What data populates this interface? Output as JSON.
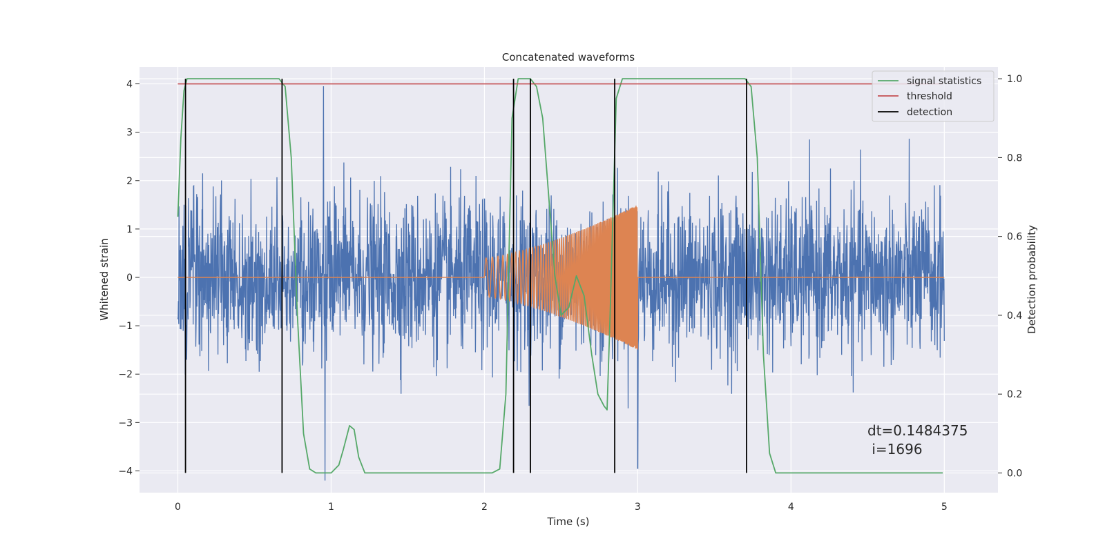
{
  "chart_data": {
    "type": "line",
    "title": "Concatenated waveforms",
    "xlabel": "Time (s)",
    "ylabel": "Whitened strain",
    "y2label": "Detection probability",
    "xlim": [
      -0.25,
      5.35
    ],
    "ylim": [
      -4.45,
      4.35
    ],
    "y2lim": [
      -0.05,
      1.03
    ],
    "x_ticks": [
      0,
      1,
      2,
      3,
      4,
      5
    ],
    "y_ticks": [
      -4,
      -3,
      -2,
      -1,
      0,
      1,
      2,
      3,
      4
    ],
    "y2_ticks": [
      0.0,
      0.2,
      0.4,
      0.6,
      0.8,
      1.0
    ],
    "y2_tick_labels": [
      "0.0",
      "0.2",
      "0.4",
      "0.6",
      "0.8",
      "1.0"
    ],
    "y_tick_labels": [
      "−4",
      "−3",
      "−2",
      "−1",
      "0",
      "1",
      "2",
      "3",
      "4"
    ],
    "grid": true,
    "legend_position": "top-right",
    "colors": {
      "background": "#eaeaf2",
      "strain": "#4c72b0",
      "template": "#dd8452",
      "signal_statistics": "#55a868",
      "threshold": "#c44e52",
      "detection": "#000000"
    },
    "series": [
      {
        "name": "signal statistics",
        "axis": "right",
        "x": [
          0.0,
          0.02,
          0.04,
          0.06,
          0.1,
          0.2,
          0.4,
          0.6,
          0.66,
          0.7,
          0.74,
          0.78,
          0.82,
          0.86,
          0.9,
          0.95,
          1.0,
          1.05,
          1.08,
          1.12,
          1.15,
          1.18,
          1.22,
          1.3,
          1.5,
          1.8,
          2.05,
          2.1,
          2.14,
          2.18,
          2.22,
          2.26,
          2.3,
          2.34,
          2.38,
          2.42,
          2.46,
          2.5,
          2.55,
          2.6,
          2.65,
          2.7,
          2.74,
          2.78,
          2.8,
          2.82,
          2.86,
          2.9,
          3.0,
          3.2,
          3.5,
          3.7,
          3.74,
          3.78,
          3.82,
          3.86,
          3.9,
          4.0,
          4.5,
          4.99
        ],
        "y": [
          0.65,
          0.85,
          0.97,
          1.0,
          1.0,
          1.0,
          1.0,
          1.0,
          1.0,
          0.98,
          0.8,
          0.4,
          0.1,
          0.01,
          0.0,
          0.0,
          0.0,
          0.02,
          0.06,
          0.12,
          0.11,
          0.04,
          0.0,
          0.0,
          0.0,
          0.0,
          0.0,
          0.01,
          0.2,
          0.9,
          1.0,
          1.0,
          1.0,
          0.98,
          0.9,
          0.7,
          0.5,
          0.4,
          0.42,
          0.5,
          0.45,
          0.3,
          0.2,
          0.17,
          0.16,
          0.4,
          0.95,
          1.0,
          1.0,
          1.0,
          1.0,
          1.0,
          0.98,
          0.8,
          0.3,
          0.05,
          0.0,
          0.0,
          0.0,
          0.0
        ]
      },
      {
        "name": "threshold",
        "axis": "right",
        "x": [
          0.0,
          4.99
        ],
        "y": [
          0.987,
          0.987
        ]
      },
      {
        "name": "detection",
        "axis": "right",
        "type": "vlines",
        "x": [
          0.05,
          0.68,
          2.19,
          2.3,
          2.85,
          3.71
        ],
        "ymin": 0.0,
        "ymax": 1.0
      }
    ],
    "strain_series": {
      "axis": "left",
      "x_start": 0.0,
      "x_end": 5.0,
      "amplitude_std": 0.8,
      "notable_spikes": [
        {
          "x": 0.95,
          "y": 3.95
        },
        {
          "x": 0.96,
          "y": -4.2
        },
        {
          "x": 3.0,
          "y": -3.95
        }
      ]
    },
    "template_series": {
      "axis": "left",
      "x_start": 2.0,
      "x_end": 3.0,
      "start_amplitude": 0.4,
      "end_amplitude": 1.5
    },
    "annotation": [
      "dt=0.1484375",
      " i=1696"
    ]
  }
}
